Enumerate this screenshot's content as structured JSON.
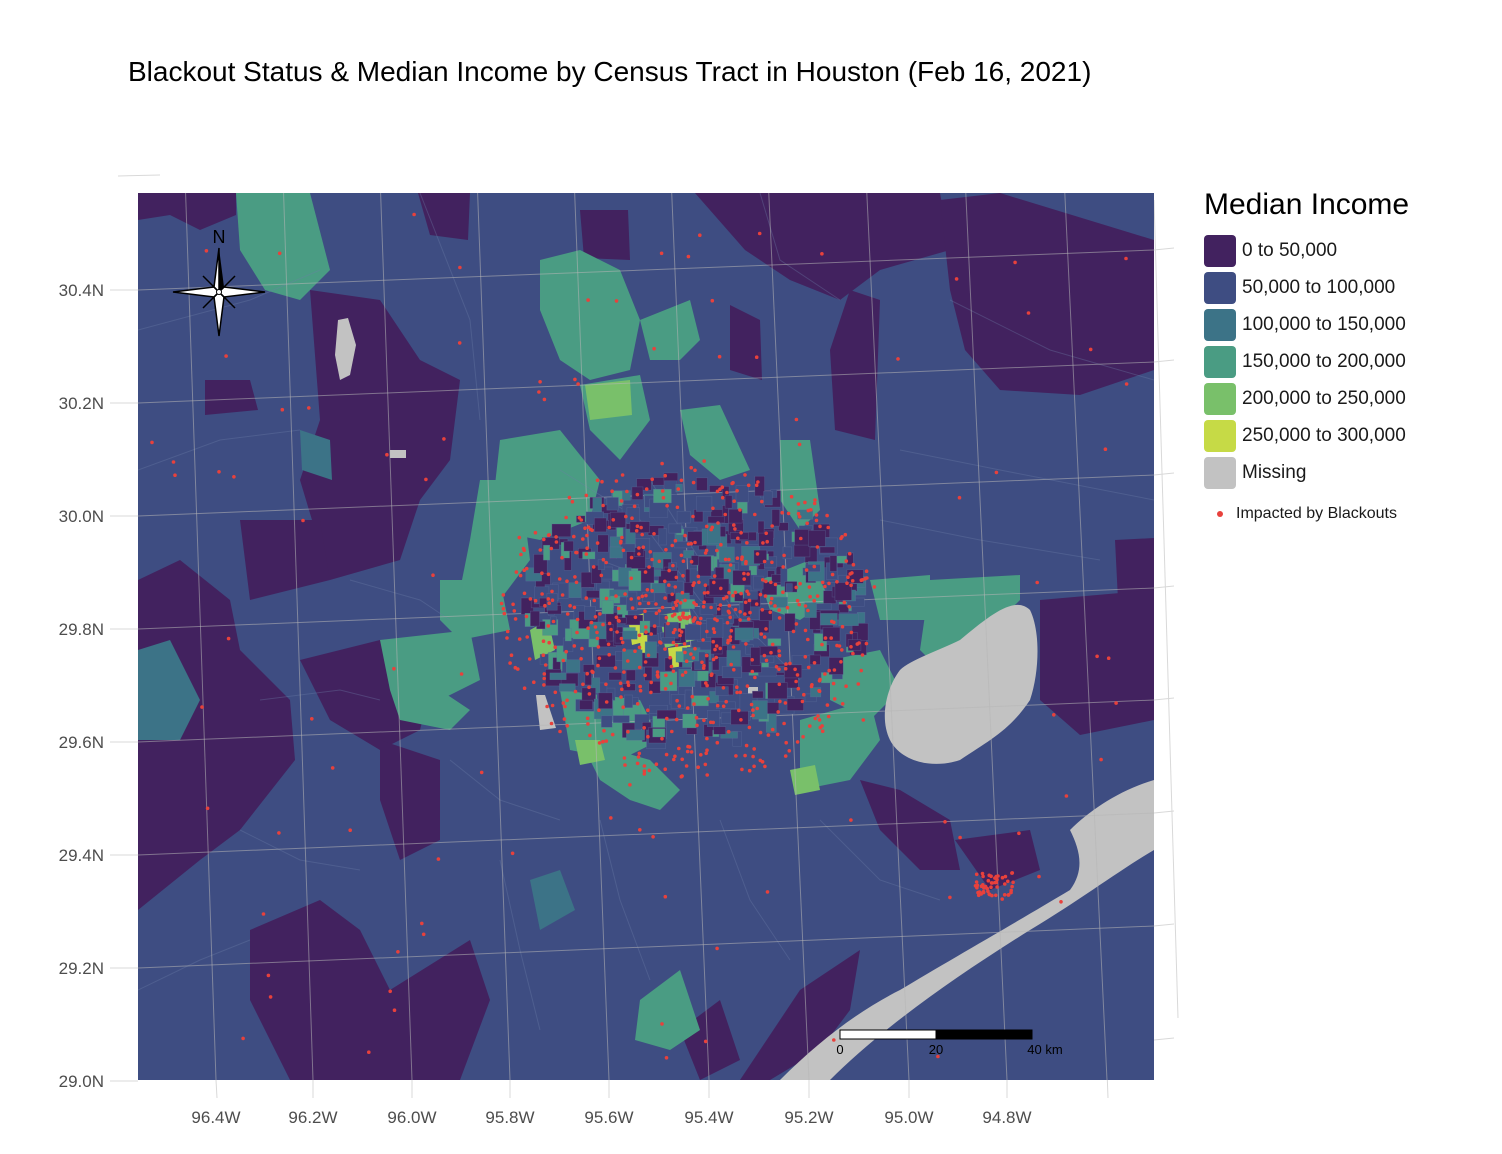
{
  "title": "Blackout Status & Median Income by Census Tract in Houston (Feb 16, 2021)",
  "axes": {
    "y_ticks": [
      "30.4N",
      "30.2N",
      "30.0N",
      "29.8N",
      "29.6N",
      "29.4N",
      "29.2N",
      "29.0N"
    ],
    "x_ticks": [
      "96.4W",
      "96.2W",
      "96.0W",
      "95.8W",
      "95.6W",
      "95.4W",
      "95.2W",
      "95.0W",
      "94.8W"
    ]
  },
  "legend": {
    "title": "Median Income",
    "items": [
      {
        "label": "0 to 50,000",
        "color": "#42225f"
      },
      {
        "label": "50,000 to 100,000",
        "color": "#3e4d82"
      },
      {
        "label": "100,000 to 150,000",
        "color": "#3c7387"
      },
      {
        "label": "150,000 to 200,000",
        "color": "#4a9c83"
      },
      {
        "label": "200,000 to 250,000",
        "color": "#79c06a"
      },
      {
        "label": "250,000 to 300,000",
        "color": "#c6da46"
      },
      {
        "label": "Missing",
        "color": "#c2c2c2"
      }
    ],
    "point_label": "Impacted by Blackouts",
    "point_color": "#e8413c"
  },
  "compass": {
    "label": "N",
    "icon": "north-arrow-compass-icon"
  },
  "scale_bar": {
    "labels": [
      "0",
      "20",
      "40 km"
    ]
  }
}
